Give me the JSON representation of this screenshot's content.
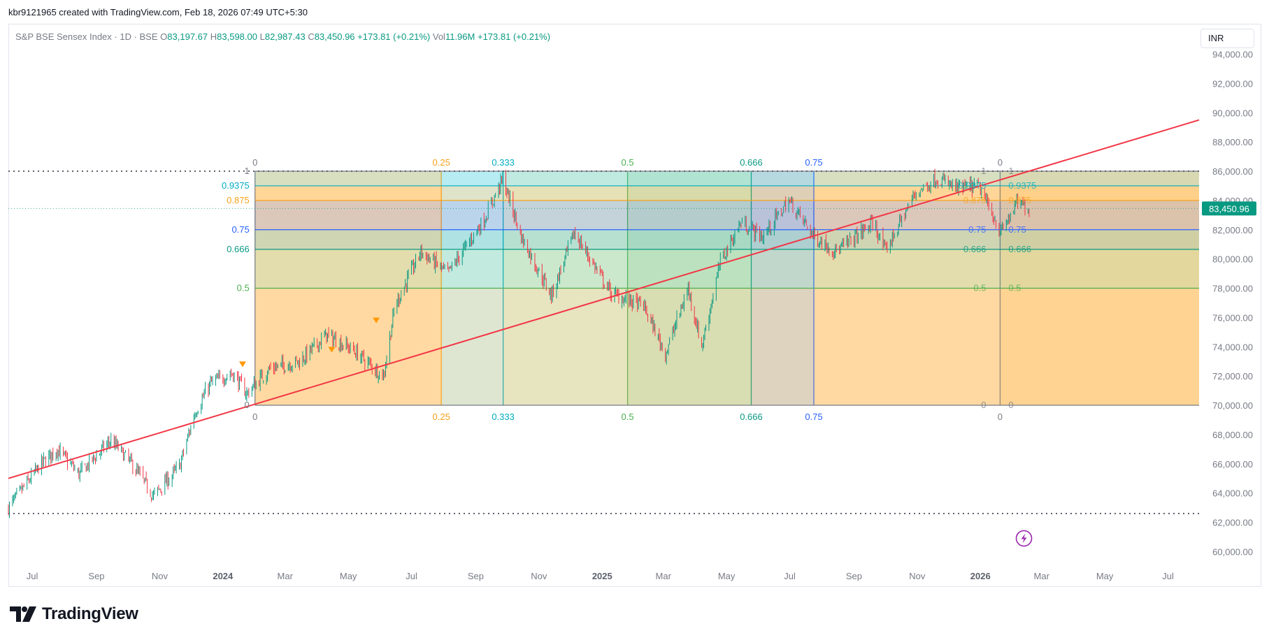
{
  "header": {
    "watermark_text": "kbr9121965 created with TradingView.com, Feb 18, 2026 07:49 UTC+5:30"
  },
  "legend": {
    "symbol": "S&P BSE Sensex Index · 1D · BSE",
    "open_label": "O",
    "open": "83,197.67",
    "high_label": "H",
    "high": "83,598.00",
    "low_label": "L",
    "low": "82,987.43",
    "close_label": "C",
    "close": "83,450.96",
    "change": "+173.81 (+0.21%)",
    "vol_label": "Vol",
    "vol": "11.96M",
    "vol_change": "+173.81 (+0.21%)"
  },
  "currency_button": {
    "label": "INR"
  },
  "last_price_tag": "83,450.96",
  "brand": {
    "name": "TradingView",
    "logo_icon": "tradingview-logo-icon"
  },
  "colors": {
    "up": "#089981",
    "down": "#f23645",
    "trendline": "#f23645",
    "axis_text": "#787b86",
    "price_tag": "#089981"
  },
  "chart_data": {
    "type": "candlestick",
    "title": "",
    "yaxis_ticks": [
      "60,000.00",
      "62,000.00",
      "64,000.00",
      "66,000.00",
      "68,000.00",
      "70,000.00",
      "72,000.00",
      "74,000.00",
      "76,000.00",
      "78,000.00",
      "80,000.00",
      "82,000.00",
      "84,000.00",
      "86,000.00",
      "88,000.00",
      "90,000.00",
      "92,000.00",
      "94,000.00"
    ],
    "yaxis_values": [
      60000,
      62000,
      64000,
      66000,
      68000,
      70000,
      72000,
      74000,
      76000,
      78000,
      80000,
      82000,
      84000,
      86000,
      88000,
      90000,
      92000,
      94000
    ],
    "ylim": [
      59000,
      95000
    ],
    "xaxis_ticks": [
      {
        "label": "Jul",
        "date": "2023-07-01"
      },
      {
        "label": "Sep",
        "date": "2023-09-01"
      },
      {
        "label": "Nov",
        "date": "2023-11-01"
      },
      {
        "label": "2024",
        "date": "2024-01-01",
        "bold": true
      },
      {
        "label": "Mar",
        "date": "2024-03-01"
      },
      {
        "label": "May",
        "date": "2024-05-01"
      },
      {
        "label": "Jul",
        "date": "2024-07-01"
      },
      {
        "label": "Sep",
        "date": "2024-09-01"
      },
      {
        "label": "Nov",
        "date": "2024-11-01"
      },
      {
        "label": "2025",
        "date": "2025-01-01",
        "bold": true
      },
      {
        "label": "Mar",
        "date": "2025-03-01"
      },
      {
        "label": "May",
        "date": "2025-05-01"
      },
      {
        "label": "Jul",
        "date": "2025-07-01"
      },
      {
        "label": "Sep",
        "date": "2025-09-01"
      },
      {
        "label": "Nov",
        "date": "2025-11-01"
      },
      {
        "label": "2026",
        "date": "2026-01-01",
        "bold": true
      },
      {
        "label": "Mar",
        "date": "2026-03-01"
      },
      {
        "label": "May",
        "date": "2026-05-01"
      },
      {
        "label": "Jul",
        "date": "2026-07-01"
      }
    ],
    "xlim": [
      "2023-06-08",
      "2026-07-31"
    ],
    "price_path": [
      [
        "2023-06-08",
        63000
      ],
      [
        "2023-07-10",
        66000
      ],
      [
        "2023-07-25",
        67000
      ],
      [
        "2023-08-15",
        65300
      ],
      [
        "2023-09-15",
        67600
      ],
      [
        "2023-10-05",
        66000
      ],
      [
        "2023-10-26",
        63800
      ],
      [
        "2023-11-20",
        65800
      ],
      [
        "2023-12-05",
        69500
      ],
      [
        "2023-12-20",
        71500
      ],
      [
        "2024-01-10",
        72200
      ],
      [
        "2024-01-24",
        70800
      ],
      [
        "2024-02-15",
        72500
      ],
      [
        "2024-03-15",
        73000
      ],
      [
        "2024-04-10",
        74800
      ],
      [
        "2024-05-05",
        73800
      ],
      [
        "2024-06-04",
        72000
      ],
      [
        "2024-06-15",
        76800
      ],
      [
        "2024-07-10",
        80500
      ],
      [
        "2024-08-05",
        79000
      ],
      [
        "2024-09-10",
        82800
      ],
      [
        "2024-09-27",
        85500
      ],
      [
        "2024-10-15",
        81500
      ],
      [
        "2024-11-13",
        77500
      ],
      [
        "2024-12-05",
        81800
      ],
      [
        "2025-01-10",
        77600
      ],
      [
        "2025-02-10",
        76800
      ],
      [
        "2025-03-03",
        73500
      ],
      [
        "2025-03-25",
        78000
      ],
      [
        "2025-04-07",
        74000
      ],
      [
        "2025-04-25",
        79800
      ],
      [
        "2025-05-15",
        82500
      ],
      [
        "2025-06-05",
        81500
      ],
      [
        "2025-06-30",
        84000
      ],
      [
        "2025-07-25",
        81500
      ],
      [
        "2025-08-15",
        80500
      ],
      [
        "2025-09-20",
        82500
      ],
      [
        "2025-10-01",
        80500
      ],
      [
        "2025-10-30",
        84500
      ],
      [
        "2025-11-20",
        85500
      ],
      [
        "2025-12-10",
        84800
      ],
      [
        "2025-12-30",
        85000
      ],
      [
        "2026-01-21",
        81800
      ],
      [
        "2026-02-05",
        83800
      ],
      [
        "2026-02-17",
        83450.96
      ]
    ],
    "last_close": 83450.96,
    "trendline": {
      "start": [
        "2023-06-08",
        65000
      ],
      "end": [
        "2026-07-31",
        89500
      ]
    },
    "horizontal_dotted_lines": [
      86000,
      62600
    ],
    "fib_time_zones": {
      "start_date": "2024-02-01",
      "end_date": "2026-01-20",
      "levels": [
        {
          "label": "0",
          "ratio": 0,
          "color": "#787b86"
        },
        {
          "label": "0.25",
          "ratio": 0.25,
          "color": "#f7a21b"
        },
        {
          "label": "0.333",
          "ratio": 0.333,
          "color": "#00acc1"
        },
        {
          "label": "0.5",
          "ratio": 0.5,
          "color": "#4caf50"
        },
        {
          "label": "0.666",
          "ratio": 0.666,
          "color": "#089981"
        },
        {
          "label": "0.75",
          "ratio": 0.75,
          "color": "#2962ff"
        },
        {
          "label": "0",
          "ratio": 1,
          "color": "#787b86"
        }
      ],
      "bottom_labels": [
        "0",
        "0.25",
        "0.333",
        "0.5",
        "0.666",
        "0.75",
        "0"
      ]
    },
    "fib_retracement": {
      "price_0": 70000,
      "price_1": 86000,
      "left_date": "2024-02-01",
      "mid_date": "2026-01-20",
      "right_date": "2026-07-31",
      "levels": [
        {
          "label": "0",
          "ratio": 0,
          "color": "#787b86"
        },
        {
          "label": "0.5",
          "ratio": 0.5,
          "color": "#4caf50"
        },
        {
          "label": "0.666",
          "ratio": 0.666,
          "color": "#089981"
        },
        {
          "label": "0.75",
          "ratio": 0.75,
          "color": "#2962ff"
        },
        {
          "label": "0.875",
          "ratio": 0.875,
          "color": "#f7a21b"
        },
        {
          "label": "0.9375",
          "ratio": 0.9375,
          "color": "#00acc1"
        },
        {
          "label": "1",
          "ratio": 1,
          "color": "#787b86"
        }
      ]
    },
    "markers": [
      {
        "type": "triangle-down",
        "date": "2024-01-20",
        "price": 72800,
        "color": "#ff9800"
      },
      {
        "type": "triangle-down",
        "date": "2024-04-15",
        "price": 73800,
        "color": "#ff9800"
      },
      {
        "type": "triangle-down",
        "date": "2024-05-28",
        "price": 75800,
        "color": "#ff9800"
      }
    ],
    "flash_icon": {
      "name": "lightning-icon",
      "date": "2026-02-12",
      "price": 60900,
      "color": "#9c27b0"
    }
  }
}
